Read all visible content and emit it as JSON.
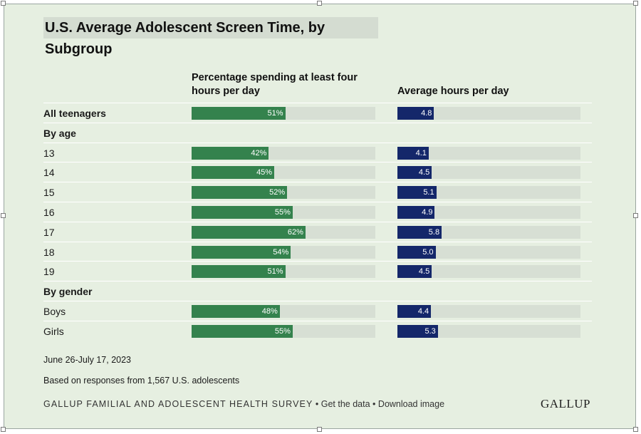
{
  "title": "U.S. Average Adolescent Screen Time, by Subgroup",
  "column_headers": {
    "percent": "Percentage spending at least four hours per day",
    "hours": "Average hours per day"
  },
  "groups": {
    "by_age": "By age",
    "by_gender": "By gender"
  },
  "notes": {
    "date": "June 26-July 17, 2023",
    "sample": "Based on responses from 1,567 U.S. adolescents"
  },
  "footer": {
    "source": "GALLUP FAMILIAL AND ADOLESCENT HEALTH SURVEY",
    "sep": "•",
    "get_data": "Get the data",
    "download": "Download image",
    "logo": "GALLUP"
  },
  "colors": {
    "percent_bar": "#34824d",
    "hours_bar": "#14276a",
    "track": "#d7dfd4",
    "background": "#e6efe1"
  },
  "chart_data": {
    "type": "bar",
    "orientation": "horizontal",
    "categories": [
      "All teenagers",
      "13",
      "14",
      "15",
      "16",
      "17",
      "18",
      "19",
      "Boys",
      "Girls"
    ],
    "series": [
      {
        "name": "Percentage spending at least four hours per day",
        "values": [
          51,
          42,
          45,
          52,
          55,
          62,
          54,
          51,
          48,
          55
        ],
        "labels": [
          "51%",
          "42%",
          "45%",
          "52%",
          "55%",
          "62%",
          "54%",
          "51%",
          "48%",
          "55%"
        ],
        "xlim": [
          0,
          100
        ]
      },
      {
        "name": "Average hours per day",
        "values": [
          4.8,
          4.1,
          4.5,
          5.1,
          4.9,
          5.8,
          5.0,
          4.5,
          4.4,
          5.3
        ],
        "labels": [
          "4.8",
          "4.1",
          "4.5",
          "5.1",
          "4.9",
          "5.8",
          "5.0",
          "4.5",
          "4.4",
          "5.3"
        ],
        "xlim": [
          0,
          24
        ]
      }
    ]
  }
}
